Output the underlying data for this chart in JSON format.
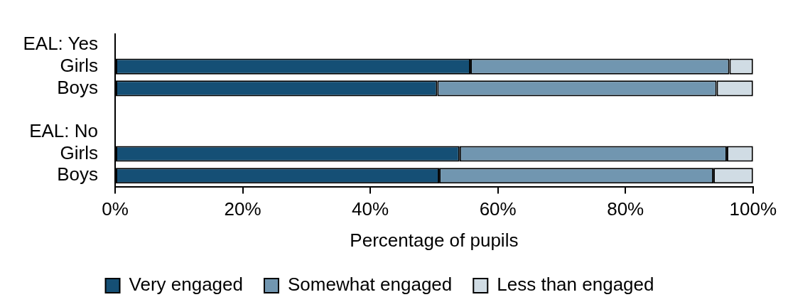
{
  "chart_data": {
    "type": "bar",
    "orientation": "horizontal",
    "stacked": true,
    "categories": [
      "EAL: Yes",
      "Girls",
      "Boys",
      null,
      "EAL: No",
      "Girls",
      "Boys"
    ],
    "series": [
      {
        "name": "Very engaged",
        "color": "#154f75",
        "values": [
          null,
          55.7,
          50.5,
          null,
          null,
          54.0,
          50.8
        ]
      },
      {
        "name": "Somewhat engaged",
        "color": "#7196b0",
        "values": [
          null,
          40.6,
          43.8,
          null,
          null,
          41.9,
          43.0
        ]
      },
      {
        "name": "Less than engaged",
        "color": "#d0dce4",
        "values": [
          null,
          3.7,
          5.7,
          null,
          null,
          4.1,
          6.2
        ]
      }
    ],
    "xlabel": "Percentage of pupils",
    "xlim": [
      0,
      100
    ],
    "xticks": [
      {
        "value": 0,
        "label": "0%"
      },
      {
        "value": 20,
        "label": "20%"
      },
      {
        "value": 40,
        "label": "40%"
      },
      {
        "value": 60,
        "label": "60%"
      },
      {
        "value": 80,
        "label": "80%"
      },
      {
        "value": 100,
        "label": "100%"
      }
    ],
    "grid": false,
    "legend": "bottom"
  }
}
